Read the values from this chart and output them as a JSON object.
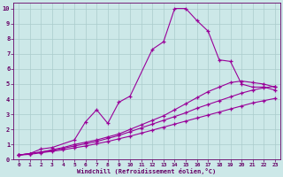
{
  "background_color": "#cce8e8",
  "grid_color": "#aacccc",
  "line_color": "#990099",
  "marker_color": "#990099",
  "xlabel": "Windchill (Refroidissement éolien,°C)",
  "xlabel_color": "#660066",
  "tick_color": "#660066",
  "xlim": [
    -0.5,
    23.5
  ],
  "ylim": [
    0,
    10.4
  ],
  "xticks": [
    0,
    1,
    2,
    3,
    4,
    5,
    6,
    7,
    8,
    9,
    10,
    11,
    12,
    13,
    14,
    15,
    16,
    17,
    18,
    19,
    20,
    21,
    22,
    23
  ],
  "yticks": [
    0,
    1,
    2,
    3,
    4,
    5,
    6,
    7,
    8,
    9,
    10
  ],
  "lines": [
    {
      "x": [
        0,
        1,
        2,
        3,
        5,
        6,
        7,
        8,
        9,
        10,
        12,
        13,
        14,
        15,
        16,
        17,
        18,
        19,
        20,
        21,
        22,
        23
      ],
      "y": [
        0.3,
        0.4,
        0.7,
        0.8,
        1.3,
        2.5,
        3.3,
        2.4,
        3.8,
        4.2,
        7.3,
        7.8,
        10.0,
        10.0,
        9.2,
        8.5,
        6.6,
        6.5,
        5.0,
        4.8,
        4.8,
        4.6
      ],
      "marker": "+"
    },
    {
      "x": [
        0,
        1,
        2,
        3,
        4,
        5,
        6,
        7,
        8,
        9,
        10,
        11,
        12,
        13,
        14,
        15,
        16,
        17,
        18,
        19,
        20,
        21,
        22,
        23
      ],
      "y": [
        0.3,
        0.4,
        0.5,
        0.65,
        0.8,
        1.0,
        1.15,
        1.3,
        1.5,
        1.7,
        2.0,
        2.3,
        2.6,
        2.9,
        3.3,
        3.7,
        4.1,
        4.5,
        4.8,
        5.1,
        5.2,
        5.1,
        5.0,
        4.8
      ],
      "marker": "+"
    },
    {
      "x": [
        0,
        1,
        2,
        3,
        4,
        5,
        6,
        7,
        8,
        9,
        10,
        11,
        12,
        13,
        14,
        15,
        16,
        17,
        18,
        19,
        20,
        21,
        22,
        23
      ],
      "y": [
        0.3,
        0.4,
        0.5,
        0.6,
        0.75,
        0.9,
        1.05,
        1.2,
        1.4,
        1.6,
        1.85,
        2.1,
        2.35,
        2.6,
        2.85,
        3.1,
        3.4,
        3.65,
        3.9,
        4.15,
        4.4,
        4.6,
        4.75,
        4.85
      ],
      "marker": "+"
    },
    {
      "x": [
        0,
        1,
        2,
        3,
        4,
        5,
        6,
        7,
        8,
        9,
        10,
        11,
        12,
        13,
        14,
        15,
        16,
        17,
        18,
        19,
        20,
        21,
        22,
        23
      ],
      "y": [
        0.3,
        0.35,
        0.45,
        0.55,
        0.65,
        0.78,
        0.9,
        1.05,
        1.2,
        1.38,
        1.55,
        1.75,
        1.95,
        2.15,
        2.35,
        2.55,
        2.75,
        2.95,
        3.15,
        3.35,
        3.55,
        3.75,
        3.9,
        4.05
      ],
      "marker": "+"
    }
  ]
}
